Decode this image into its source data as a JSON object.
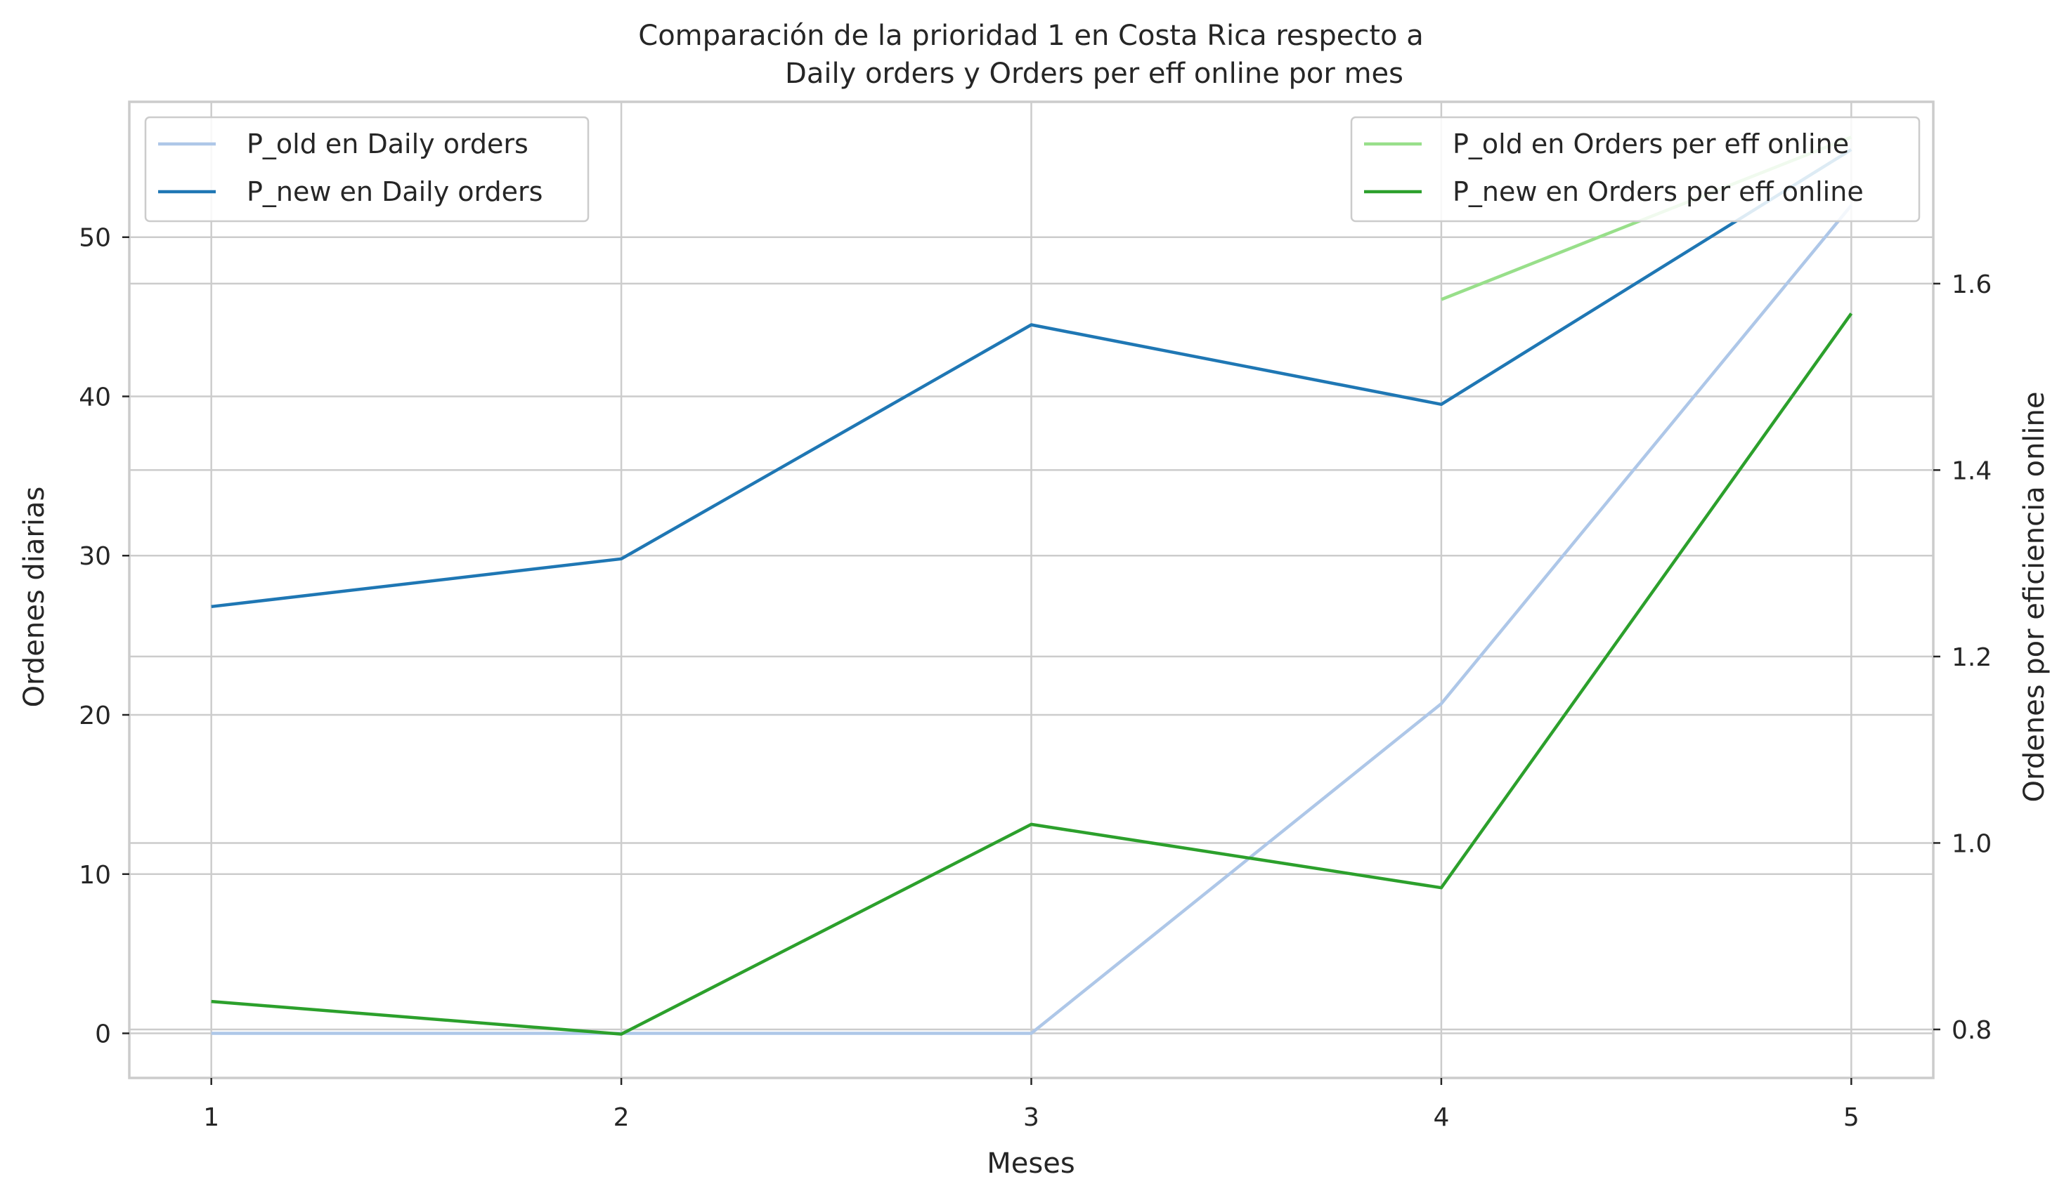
{
  "chart_data": {
    "type": "line",
    "title_line1": "Comparación de la prioridad 1 en Costa Rica respecto a",
    "title_line2": "Daily orders y Orders per eff online por mes",
    "xlabel": "Meses",
    "ylabel_left": "Ordenes diarias",
    "ylabel_right": "Ordenes por eficiencia online",
    "x": [
      1,
      2,
      3,
      4,
      5
    ],
    "x_ticks": [
      "1",
      "2",
      "3",
      "4",
      "5"
    ],
    "xlim": [
      0.8,
      5.2
    ],
    "ylim_left": [
      -2.8,
      58.5
    ],
    "ylim_right": [
      0.748,
      1.795
    ],
    "y_ticks_left": [
      "0",
      "10",
      "20",
      "30",
      "40",
      "50"
    ],
    "y_ticks_right": [
      "0.8",
      "1.0",
      "1.2",
      "1.4",
      "1.6"
    ],
    "grid": true,
    "series_left": [
      {
        "name": "P_old en Daily orders",
        "color": "#aec7e8",
        "values": [
          0,
          0,
          0,
          20.7,
          52.0
        ]
      },
      {
        "name": "P_new en Daily orders",
        "color": "#1f77b4",
        "values": [
          26.8,
          29.8,
          44.5,
          39.5,
          55.5
        ]
      }
    ],
    "series_right": [
      {
        "name": "P_old en Orders per eff online",
        "color": "#98df8a",
        "values": [
          null,
          null,
          null,
          1.583,
          1.757
        ]
      },
      {
        "name": "P_new en Orders per eff online",
        "color": "#2ca02c",
        "values": [
          0.83,
          0.795,
          1.02,
          0.952,
          1.568
        ]
      }
    ],
    "legend_left_placement": "upper-left",
    "legend_right_placement": "upper-right"
  }
}
